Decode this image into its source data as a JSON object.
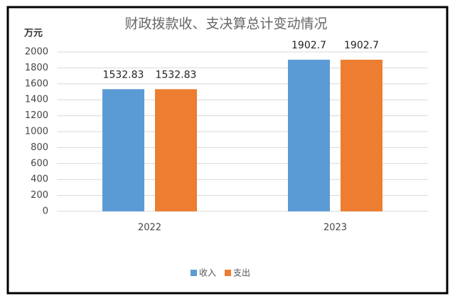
{
  "chart_data": {
    "type": "bar",
    "title": "财政拨款收、支决算总计变动情况",
    "y_label": "万元",
    "categories": [
      "2022",
      "2023"
    ],
    "series": [
      {
        "name": "收入",
        "color": "#5b9bd5",
        "values": [
          1532.83,
          1902.7
        ]
      },
      {
        "name": "支出",
        "color": "#ed7d31",
        "values": [
          1532.83,
          1902.7
        ]
      }
    ],
    "ylim": [
      0,
      2000
    ],
    "yticks": [
      0,
      200,
      400,
      600,
      800,
      1000,
      1200,
      1400,
      1600,
      1800,
      2000
    ],
    "grid": true,
    "legend": "bottom"
  }
}
